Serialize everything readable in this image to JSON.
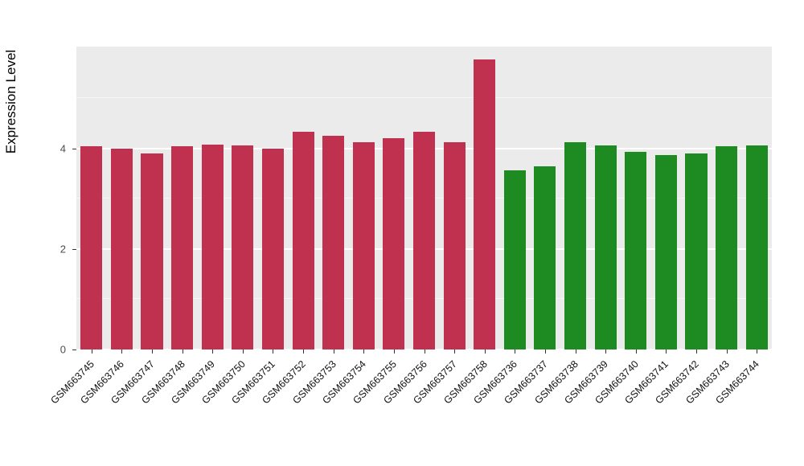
{
  "chart_data": {
    "type": "bar",
    "title": "",
    "xlabel": "",
    "ylabel": "Expression Level",
    "ylim": [
      0,
      6.03
    ],
    "yticks": [
      0,
      2,
      4
    ],
    "grid": true,
    "legend_position": "none",
    "panel_background": "#EBEBEB",
    "categories": [
      "GSM663745",
      "GSM663746",
      "GSM663747",
      "GSM663748",
      "GSM663749",
      "GSM663750",
      "GSM663751",
      "GSM663752",
      "GSM663753",
      "GSM663754",
      "GSM663755",
      "GSM663756",
      "GSM663757",
      "GSM663758",
      "GSM663736",
      "GSM663737",
      "GSM663738",
      "GSM663739",
      "GSM663740",
      "GSM663741",
      "GSM663742",
      "GSM663743",
      "GSM663744"
    ],
    "values": [
      4.05,
      4.0,
      3.9,
      4.05,
      4.08,
      4.07,
      4.0,
      4.33,
      4.25,
      4.13,
      4.2,
      4.33,
      4.12,
      5.78,
      3.57,
      3.65,
      4.12,
      4.07,
      3.93,
      3.87,
      3.9,
      4.05,
      4.07
    ],
    "groups": [
      "group1",
      "group1",
      "group1",
      "group1",
      "group1",
      "group1",
      "group1",
      "group1",
      "group1",
      "group1",
      "group1",
      "group1",
      "group1",
      "group1",
      "group2",
      "group2",
      "group2",
      "group2",
      "group2",
      "group2",
      "group2",
      "group2",
      "group2"
    ],
    "group_colors": {
      "group1": "#C0314F",
      "group2": "#1E8B22"
    }
  }
}
